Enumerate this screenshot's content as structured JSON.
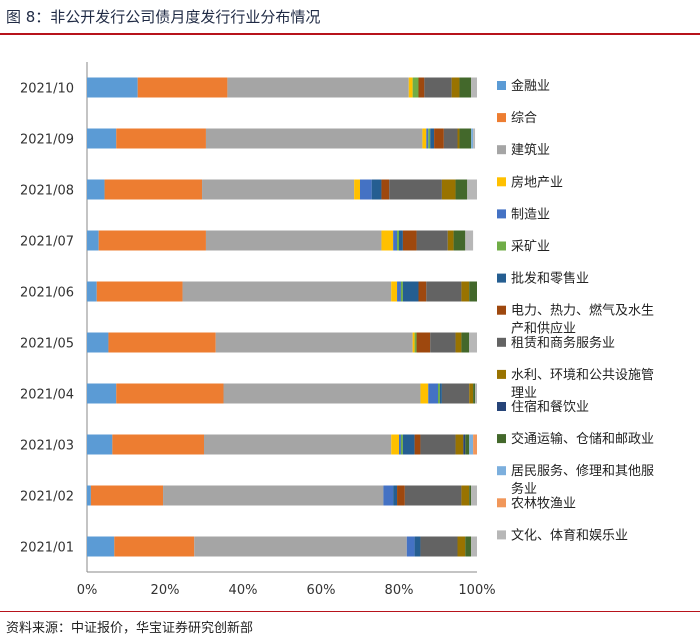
{
  "figure": {
    "title": "图 8：非公开发行公司债月度发行行业分布情况",
    "source": "资料来源：中证报价，华宝证券研究创新部"
  },
  "chart_data": {
    "type": "bar",
    "orientation": "horizontal",
    "stacked": true,
    "percent": true,
    "categories": [
      "2021/10",
      "2021/09",
      "2021/08",
      "2021/07",
      "2021/06",
      "2021/05",
      "2021/04",
      "2021/03",
      "2021/02",
      "2021/01"
    ],
    "xlim": [
      0,
      100
    ],
    "xticks": [
      "0%",
      "20%",
      "40%",
      "60%",
      "80%",
      "100%"
    ],
    "grid": false,
    "legend_position": "right",
    "series": [
      {
        "name": "金融业",
        "color": "#5b9bd5",
        "values": [
          13.0,
          7.5,
          4.5,
          3.0,
          2.5,
          5.5,
          7.5,
          6.5,
          1.0,
          7.0
        ]
      },
      {
        "name": "综合",
        "color": "#ed7d31",
        "values": [
          23.0,
          23.0,
          25.0,
          27.5,
          22.0,
          27.5,
          27.5,
          23.5,
          18.5,
          20.5
        ]
      },
      {
        "name": "建筑业",
        "color": "#a5a5a5",
        "values": [
          46.5,
          55.5,
          39.0,
          45.0,
          53.5,
          50.5,
          50.5,
          48.0,
          56.5,
          54.5
        ]
      },
      {
        "name": "房地产业",
        "color": "#ffc000",
        "values": [
          1.0,
          1.0,
          1.5,
          3.0,
          1.5,
          0.5,
          2.0,
          2.0,
          0.0,
          0.0
        ]
      },
      {
        "name": "制造业",
        "color": "#4472c4",
        "values": [
          0.0,
          0.5,
          3.0,
          1.0,
          1.0,
          0.0,
          2.5,
          0.5,
          2.5,
          2.0
        ]
      },
      {
        "name": "采矿业",
        "color": "#70ad47",
        "values": [
          1.5,
          0.5,
          0.0,
          0.5,
          0.5,
          0.5,
          0.5,
          0.5,
          0.0,
          0.0
        ]
      },
      {
        "name": "批发和零售业",
        "color": "#255e91",
        "values": [
          0.0,
          1.0,
          2.5,
          1.0,
          4.0,
          0.0,
          0.5,
          3.0,
          1.0,
          1.5
        ]
      },
      {
        "name": "电力、热力、燃气及水生产和供应业",
        "color": "#9e480e",
        "values": [
          1.5,
          2.5,
          2.0,
          3.5,
          2.0,
          3.5,
          0.0,
          1.5,
          2.0,
          0.0
        ]
      },
      {
        "name": "租赁和商务服务业",
        "color": "#636363",
        "values": [
          7.0,
          3.5,
          13.5,
          8.0,
          9.0,
          6.5,
          7.0,
          9.0,
          14.5,
          9.5
        ]
      },
      {
        "name": "水利、环境和公共设施管理业",
        "color": "#997300",
        "values": [
          2.0,
          0.5,
          3.5,
          1.5,
          2.0,
          1.5,
          1.0,
          2.0,
          2.0,
          2.0
        ]
      },
      {
        "name": "住宿和餐饮业",
        "color": "#264478",
        "values": [
          0.0,
          0.0,
          0.0,
          0.0,
          0.0,
          0.0,
          0.0,
          0.5,
          0.0,
          0.0
        ]
      },
      {
        "name": "交通运输、仓储和邮政业",
        "color": "#43682b",
        "values": [
          3.0,
          3.0,
          3.0,
          3.0,
          2.0,
          2.0,
          0.5,
          1.0,
          0.5,
          1.5
        ]
      },
      {
        "name": "居民服务、修理和其他服务业",
        "color": "#7cafdd",
        "values": [
          0.0,
          0.5,
          0.0,
          0.0,
          0.0,
          0.0,
          0.0,
          1.0,
          0.0,
          0.0
        ]
      },
      {
        "name": "农林牧渔业",
        "color": "#f1975a",
        "values": [
          0.0,
          0.0,
          0.0,
          0.0,
          0.0,
          0.0,
          0.0,
          1.0,
          0.0,
          0.0
        ]
      },
      {
        "name": "文化、体育和娱乐业",
        "color": "#b7b7b7",
        "values": [
          1.5,
          0.5,
          2.5,
          2.0,
          0.0,
          2.0,
          0.5,
          0.0,
          1.5,
          1.5
        ]
      }
    ]
  }
}
